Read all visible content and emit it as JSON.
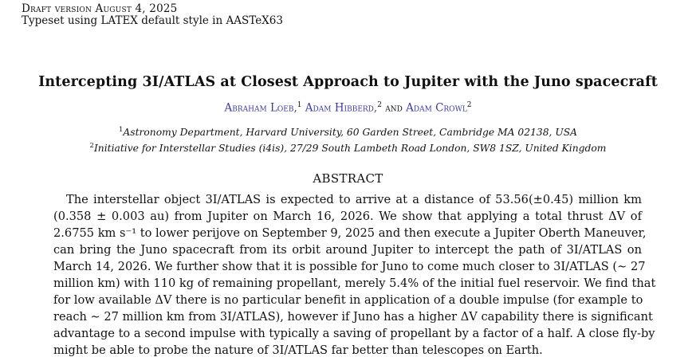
{
  "header": {
    "draft": "Draft version August 4, 2025",
    "typeset": "Typeset using LATEX default style in AASTeX63"
  },
  "paper": {
    "title": "Intercepting 3I/ATLAS at Closest Approach to Jupiter with the Juno spacecraft",
    "authors": [
      {
        "name": "Abraham Loeb,",
        "sup": "1"
      },
      {
        "name": "Adam Hibberd,",
        "sup": "2"
      },
      {
        "name": "Adam Crowl",
        "sup": "2"
      }
    ],
    "authors_and": "and",
    "affiliations": [
      {
        "sup": "1",
        "text": "Astronomy Department, Harvard University, 60 Garden Street, Cambridge MA 02138, USA"
      },
      {
        "sup": "2",
        "text": "Initiative for Interstellar Studies (i4is), 27/29 South Lambeth Road London, SW8 1SZ, United Kingdom"
      }
    ],
    "abstract_heading": "ABSTRACT",
    "abstract_lines": [
      "The interstellar object 3I/ATLAS is expected to arrive at a distance of 53.56(±0.45) million km",
      "(0.358 ± 0.003 au) from Jupiter on March 16, 2026. We show that applying a total thrust ΔV of",
      "2.6755 km s⁻¹ to lower perijove on September 9, 2025 and then execute a Jupiter Oberth Maneuver,",
      "can bring the Juno spacecraft from its orbit around Jupiter to intercept the path of 3I/ATLAS on",
      "March 14, 2026. We further show that it is possible for Juno to come much closer to 3I/ATLAS (∼ 27",
      "million km) with 110 kg of remaining propellant, merely 5.4% of the initial fuel reservoir. We find that",
      "for low available ΔV there is no particular benefit in application of a double impulse (for example to",
      "reach ∼ 27 million km from 3I/ATLAS), however if Juno has a higher ΔV capability there is significant",
      "advantage to a second impulse with typically a saving of propellant by a factor of a half. A close fly-by",
      "might be able to probe the nature of 3I/ATLAS far better than telescopes on Earth."
    ]
  }
}
